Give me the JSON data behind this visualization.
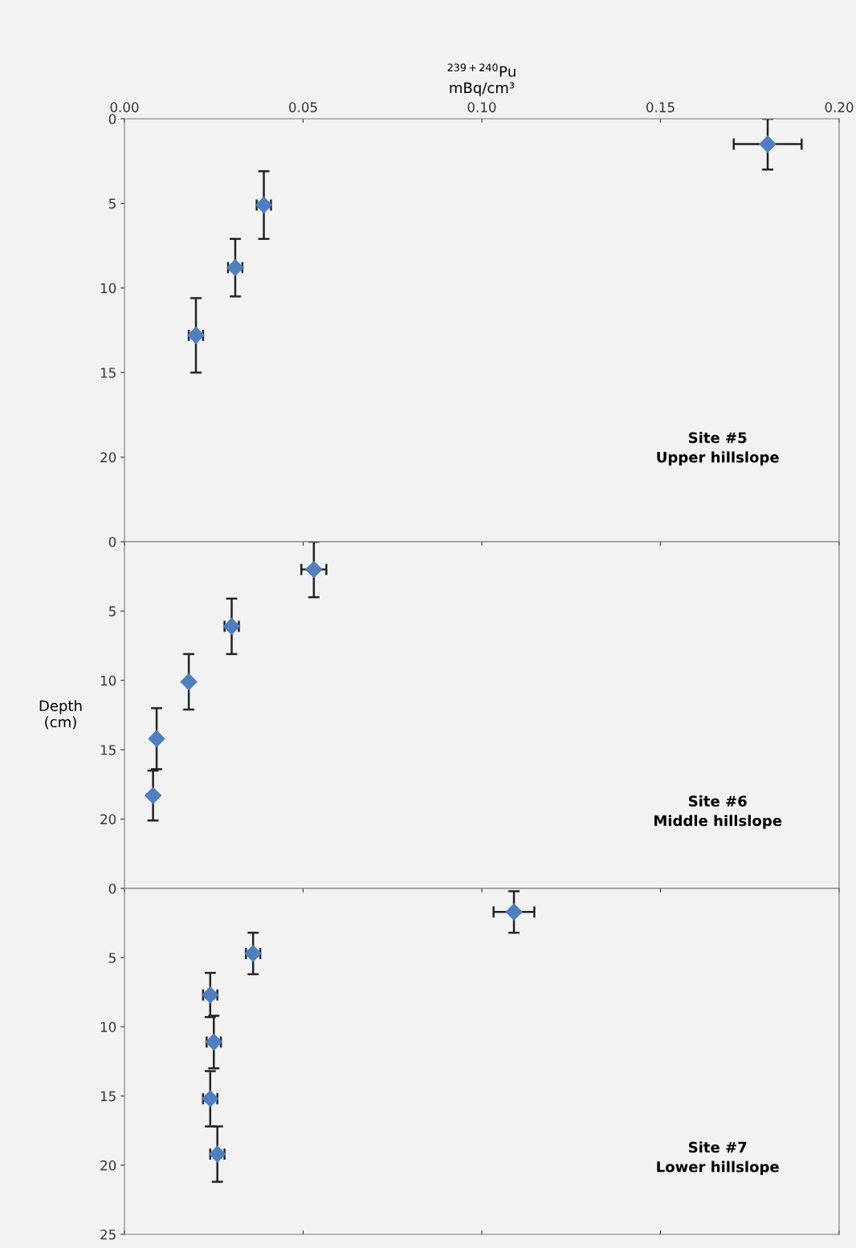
{
  "chart_data": [
    {
      "type": "scatter",
      "xlabel": "$^{239+240}$Pu\nmBq/cm³",
      "marker": "diamond",
      "grid": false,
      "tick_labels": "xy",
      "xlim": [
        0,
        0.2
      ],
      "xticks": [
        {
          "value": 0,
          "label": "0.00"
        },
        {
          "value": 0.05,
          "label": "0.05"
        },
        {
          "value": 0.1,
          "label": "0.10"
        },
        {
          "value": 0.15,
          "label": "0.15"
        },
        {
          "value": 0.2,
          "label": "0.20"
        }
      ],
      "ylim": [
        25,
        0
      ],
      "yticks": [
        0,
        5,
        10,
        15,
        20
      ],
      "series": [
        {
          "color": "#4f7fbf",
          "x": [
            0.18,
            0.039,
            0.031,
            0.02
          ],
          "values": [
            1.5,
            5.1,
            8.8,
            12.8
          ],
          "errors": [
            1.5,
            2,
            1.7,
            2.2
          ],
          "xerrors": [
            0.0095,
            0.002,
            0.002,
            0.002
          ]
        }
      ],
      "annotations": [
        "Site #5\nUpper hillslope"
      ]
    },
    {
      "type": "scatter",
      "ylabel": "Depth\n(cm)",
      "marker": "diamond",
      "grid": false,
      "tick_labels": "y",
      "xlim": [
        0,
        0.2
      ],
      "xticks": [
        {
          "value": 0,
          "label": null
        },
        {
          "value": 0.05,
          "label": null
        },
        {
          "value": 0.1,
          "label": null
        },
        {
          "value": 0.15,
          "label": null
        },
        {
          "value": 0.2,
          "label": null
        }
      ],
      "ylim": [
        25,
        0
      ],
      "yticks": [
        0,
        5,
        10,
        15,
        20
      ],
      "series": [
        {
          "color": "#4f7fbf",
          "x": [
            0.053,
            0.03,
            0.018,
            0.009,
            0.008
          ],
          "values": [
            2.0,
            6.1,
            10.1,
            14.2,
            18.3
          ],
          "errors": [
            2,
            2,
            2,
            2.2,
            1.8
          ],
          "xerrors": [
            0.0035,
            0.002,
            null,
            null,
            null
          ]
        }
      ],
      "annotations": [
        "Site #6\nMiddle hillslope"
      ]
    },
    {
      "type": "scatter",
      "marker": "diamond",
      "grid": false,
      "tick_labels": "y",
      "xlim": [
        0,
        0.2
      ],
      "xticks": [
        {
          "value": 0,
          "label": null
        },
        {
          "value": 0.05,
          "label": null
        },
        {
          "value": 0.1,
          "label": null
        },
        {
          "value": 0.15,
          "label": null
        },
        {
          "value": 0.2,
          "label": null
        }
      ],
      "ylim": [
        25,
        0
      ],
      "yticks": [
        0,
        5,
        10,
        15,
        20,
        25
      ],
      "series": [
        {
          "color": "#4f7fbf",
          "x": [
            0.109,
            0.036,
            0.024,
            0.025,
            0.024,
            0.026
          ],
          "values": [
            1.7,
            4.7,
            7.7,
            11.1,
            15.2,
            19.2
          ],
          "errors": [
            1.5,
            1.5,
            1.6,
            1.9,
            2,
            2
          ],
          "xerrors": [
            0.0057,
            0.002,
            0.002,
            0.002,
            0.002,
            0.002
          ]
        }
      ],
      "annotations": [
        "Site #7\nLower hillslope"
      ]
    }
  ]
}
